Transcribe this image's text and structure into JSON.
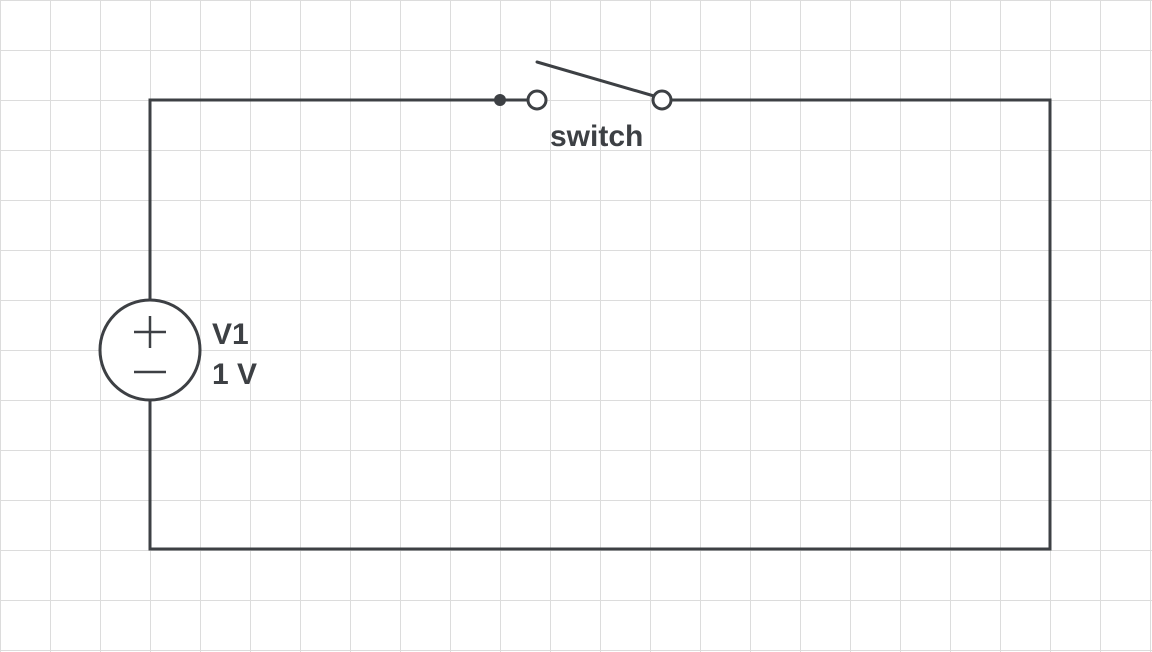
{
  "diagram": {
    "type": "circuit-schematic",
    "background": "#ffffff",
    "grid_color": "#dcdcdc",
    "stroke_color": "#3d4044",
    "components": {
      "voltage_source": {
        "name": "V1",
        "value": "1 V"
      },
      "switch": {
        "label": "switch",
        "state": "open"
      }
    }
  }
}
